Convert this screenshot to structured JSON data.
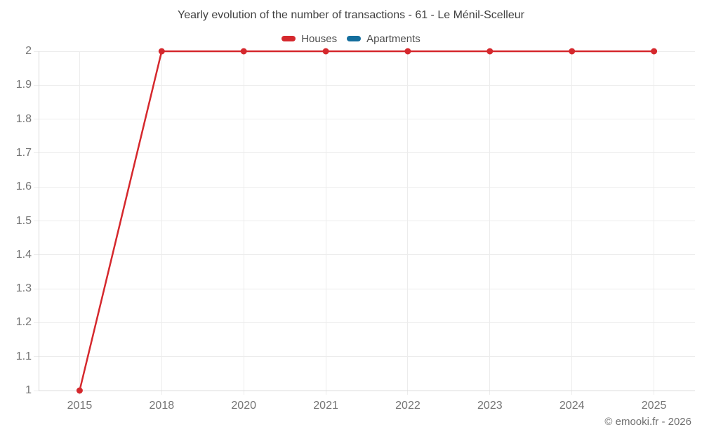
{
  "footer": "© emooki.fr - 2026",
  "colors": {
    "houses": "#d5282d",
    "apartments": "#146e9d",
    "grid": "#ececec",
    "axis": "#d9d9d9",
    "tick_text": "#757575",
    "title_text": "#404040",
    "legend_text": "#4d4d4d",
    "background": "#ffffff"
  },
  "chart_data": {
    "type": "line",
    "title": "Yearly evolution of the number of transactions - 61 - Le Ménil-Scelleur",
    "categories": [
      "2015",
      "2018",
      "2020",
      "2021",
      "2022",
      "2023",
      "2024",
      "2025"
    ],
    "series": [
      {
        "name": "Houses",
        "color": "#d5282d",
        "values": [
          1,
          2,
          2,
          2,
          2,
          2,
          2,
          2
        ]
      },
      {
        "name": "Apartments",
        "color": "#146e9d",
        "values": []
      }
    ],
    "xlabel": "",
    "ylabel": "",
    "ylim": [
      1,
      2
    ],
    "y_ticks": [
      "1",
      "1.1",
      "1.2",
      "1.3",
      "1.4",
      "1.5",
      "1.6",
      "1.7",
      "1.8",
      "1.9",
      "2"
    ],
    "grid": true,
    "legend_position": "top",
    "marker_radius": 4.5,
    "line_width": 2.5
  }
}
